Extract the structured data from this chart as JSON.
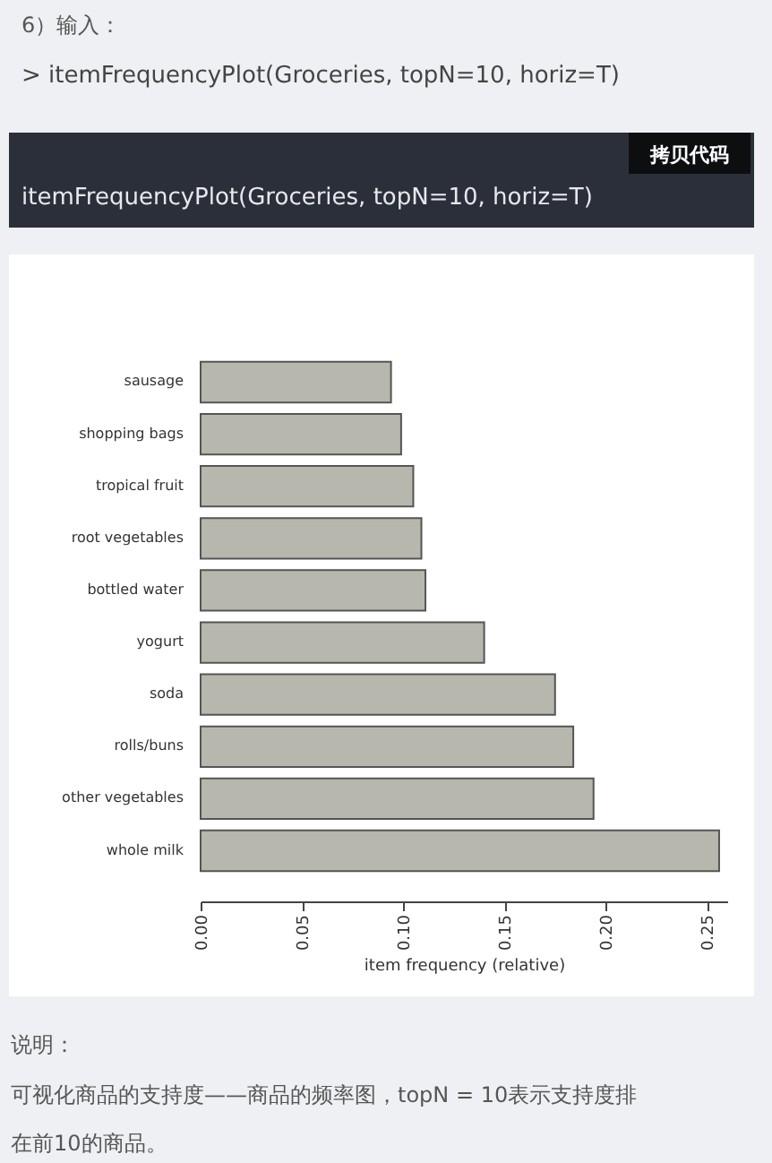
{
  "chart_data": {
    "type": "bar",
    "orientation": "horizontal",
    "categories": [
      "sausage",
      "shopping bags",
      "tropical fruit",
      "root vegetables",
      "bottled water",
      "yogurt",
      "soda",
      "rolls/buns",
      "other vegetables",
      "whole milk"
    ],
    "values": [
      0.094,
      0.099,
      0.105,
      0.109,
      0.111,
      0.14,
      0.175,
      0.184,
      0.194,
      0.256
    ],
    "color": "#b8b7ad",
    "xlabel": "item frequency (relative)",
    "xlim": [
      0,
      0.26
    ],
    "xticks": [
      {
        "value": 0,
        "label": "0.00"
      },
      {
        "value": 0.05,
        "label": "0.05"
      },
      {
        "value": 0.1,
        "label": "0.10"
      },
      {
        "value": 0.15,
        "label": "0.15"
      },
      {
        "value": 0.2,
        "label": "0.20"
      },
      {
        "value": 0.25,
        "label": "0.25"
      }
    ],
    "grid": false,
    "annotations": [
      "6）输入：",
      "> itemFrequencyPlot(Groceries, topN=10, horiz=T)",
      "拷贝代码",
      "itemFrequencyPlot(Groceries, topN=10, horiz=T)",
      "说明：",
      "可视化商品的支持度——商品的频率图，topN = 10表示支持度排",
      "在前10的商品。"
    ]
  }
}
